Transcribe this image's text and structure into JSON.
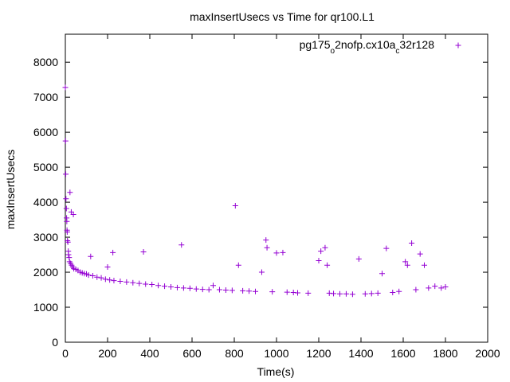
{
  "chart_data": {
    "type": "scatter",
    "title": "maxInsertUsecs vs Time for qr100.L1",
    "xlabel": "Time(s)",
    "ylabel": "maxInsertUsecs",
    "xlim": [
      0,
      2000
    ],
    "ylim": [
      0,
      8800
    ],
    "x_ticks": [
      0,
      200,
      400,
      600,
      800,
      1000,
      1200,
      1400,
      1600,
      1800,
      2000
    ],
    "y_ticks": [
      0,
      1000,
      2000,
      3000,
      4000,
      5000,
      6000,
      7000,
      8000
    ],
    "grid": false,
    "legend_position": "top-right",
    "marker": "+",
    "series": [
      {
        "name_parts": [
          "pg175",
          "o",
          "2nofp.cx10a",
          "c",
          "32r128"
        ],
        "color": "#9400D3",
        "points": [
          [
            0,
            7280
          ],
          [
            1,
            5750
          ],
          [
            2,
            4800
          ],
          [
            3,
            4100
          ],
          [
            5,
            3820
          ],
          [
            6,
            3550
          ],
          [
            7,
            3450
          ],
          [
            8,
            3200
          ],
          [
            9,
            3150
          ],
          [
            10,
            2900
          ],
          [
            12,
            2860
          ],
          [
            14,
            2600
          ],
          [
            15,
            2500
          ],
          [
            18,
            2420
          ],
          [
            20,
            2300
          ],
          [
            22,
            4280
          ],
          [
            25,
            2250
          ],
          [
            28,
            3720
          ],
          [
            30,
            2200
          ],
          [
            35,
            2150
          ],
          [
            38,
            3650
          ],
          [
            40,
            2100
          ],
          [
            50,
            2080
          ],
          [
            60,
            2050
          ],
          [
            70,
            2000
          ],
          [
            80,
            1980
          ],
          [
            90,
            1960
          ],
          [
            100,
            1950
          ],
          [
            110,
            1920
          ],
          [
            120,
            2450
          ],
          [
            130,
            1900
          ],
          [
            150,
            1860
          ],
          [
            170,
            1840
          ],
          [
            190,
            1800
          ],
          [
            200,
            2150
          ],
          [
            210,
            1780
          ],
          [
            225,
            2560
          ],
          [
            230,
            1760
          ],
          [
            260,
            1740
          ],
          [
            290,
            1720
          ],
          [
            320,
            1700
          ],
          [
            350,
            1680
          ],
          [
            370,
            2580
          ],
          [
            380,
            1660
          ],
          [
            410,
            1650
          ],
          [
            440,
            1620
          ],
          [
            470,
            1600
          ],
          [
            500,
            1580
          ],
          [
            530,
            1560
          ],
          [
            550,
            2780
          ],
          [
            560,
            1550
          ],
          [
            590,
            1540
          ],
          [
            620,
            1520
          ],
          [
            650,
            1510
          ],
          [
            680,
            1500
          ],
          [
            700,
            1620
          ],
          [
            730,
            1500
          ],
          [
            760,
            1490
          ],
          [
            790,
            1480
          ],
          [
            805,
            3900
          ],
          [
            820,
            2200
          ],
          [
            840,
            1470
          ],
          [
            870,
            1460
          ],
          [
            900,
            1450
          ],
          [
            930,
            2000
          ],
          [
            950,
            2920
          ],
          [
            955,
            2700
          ],
          [
            980,
            1440
          ],
          [
            1000,
            2550
          ],
          [
            1030,
            2560
          ],
          [
            1050,
            1430
          ],
          [
            1080,
            1420
          ],
          [
            1100,
            1410
          ],
          [
            1150,
            1400
          ],
          [
            1200,
            2330
          ],
          [
            1210,
            2600
          ],
          [
            1230,
            2700
          ],
          [
            1240,
            2200
          ],
          [
            1250,
            1400
          ],
          [
            1270,
            1390
          ],
          [
            1300,
            1380
          ],
          [
            1330,
            1380
          ],
          [
            1360,
            1370
          ],
          [
            1390,
            2380
          ],
          [
            1420,
            1380
          ],
          [
            1450,
            1390
          ],
          [
            1480,
            1400
          ],
          [
            1500,
            1960
          ],
          [
            1520,
            2680
          ],
          [
            1550,
            1420
          ],
          [
            1580,
            1450
          ],
          [
            1610,
            2300
          ],
          [
            1620,
            2200
          ],
          [
            1640,
            2830
          ],
          [
            1660,
            1500
          ],
          [
            1680,
            2520
          ],
          [
            1700,
            2200
          ],
          [
            1720,
            1550
          ],
          [
            1750,
            1600
          ],
          [
            1780,
            1550
          ],
          [
            1800,
            1580
          ]
        ]
      }
    ]
  }
}
